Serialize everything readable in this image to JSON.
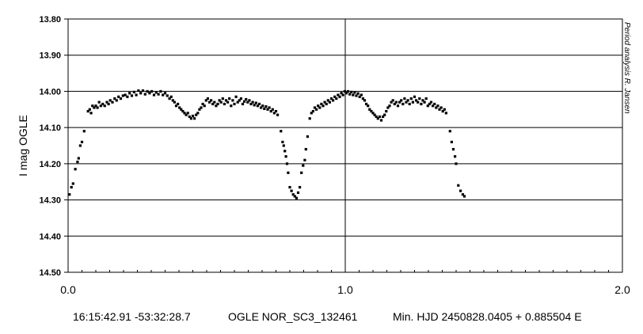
{
  "chart_data": {
    "type": "scatter",
    "ylabel": "I mag OGLE",
    "side_label": "Period analysis R. Jansen",
    "footer": {
      "coords": "16:15:42.91 -53:32:28.7",
      "object": "OGLE NOR_SC3_132461",
      "ephemeris": "Min. HJD 2450828.0405 + 0.885504 E"
    },
    "xlim": [
      0.0,
      2.0
    ],
    "ylim": [
      13.8,
      14.5
    ],
    "y_inverted": true,
    "x_major_ticks": [
      "0.0",
      "1.0",
      "2.0"
    ],
    "y_ticks": [
      "13.80",
      "13.90",
      "14.00",
      "14.10",
      "14.20",
      "14.30",
      "14.40",
      "14.50"
    ],
    "grid": "horizontal lines at each y tick; vertical line at 1.0",
    "marker_color": "#000000",
    "series": [
      {
        "points": [
          [
            0.005,
            14.285
          ],
          [
            0.012,
            14.265
          ],
          [
            0.018,
            14.255
          ],
          [
            0.026,
            14.215
          ],
          [
            0.034,
            14.195
          ],
          [
            0.038,
            14.185
          ],
          [
            0.044,
            14.15
          ],
          [
            0.05,
            14.14
          ],
          [
            0.058,
            14.11
          ],
          [
            0.072,
            14.055
          ],
          [
            0.078,
            14.05
          ],
          [
            0.083,
            14.06
          ],
          [
            0.088,
            14.04
          ],
          [
            0.094,
            14.045
          ],
          [
            0.1,
            14.04
          ],
          [
            0.106,
            14.045
          ],
          [
            0.112,
            14.03
          ],
          [
            0.118,
            14.04
          ],
          [
            0.125,
            14.035
          ],
          [
            0.132,
            14.04
          ],
          [
            0.14,
            14.03
          ],
          [
            0.146,
            14.035
          ],
          [
            0.152,
            14.025
          ],
          [
            0.16,
            14.03
          ],
          [
            0.168,
            14.02
          ],
          [
            0.175,
            14.025
          ],
          [
            0.182,
            14.015
          ],
          [
            0.19,
            14.02
          ],
          [
            0.198,
            14.012
          ],
          [
            0.206,
            14.01
          ],
          [
            0.214,
            14.015
          ],
          [
            0.222,
            14.005
          ],
          [
            0.23,
            14.012
          ],
          [
            0.238,
            14.002
          ],
          [
            0.246,
            14.01
          ],
          [
            0.254,
            13.998
          ],
          [
            0.262,
            14.005
          ],
          [
            0.27,
            13.998
          ],
          [
            0.278,
            14.008
          ],
          [
            0.286,
            14.0
          ],
          [
            0.294,
            14.005
          ],
          [
            0.302,
            14.0
          ],
          [
            0.31,
            14.01
          ],
          [
            0.318,
            14.003
          ],
          [
            0.326,
            14.008
          ],
          [
            0.334,
            14.0
          ],
          [
            0.342,
            14.01
          ],
          [
            0.35,
            14.005
          ],
          [
            0.358,
            14.012
          ],
          [
            0.366,
            14.02
          ],
          [
            0.372,
            14.015
          ],
          [
            0.378,
            14.025
          ],
          [
            0.384,
            14.03
          ],
          [
            0.39,
            14.04
          ],
          [
            0.396,
            14.035
          ],
          [
            0.402,
            14.045
          ],
          [
            0.408,
            14.05
          ],
          [
            0.414,
            14.055
          ],
          [
            0.42,
            14.06
          ],
          [
            0.426,
            14.065
          ],
          [
            0.432,
            14.06
          ],
          [
            0.438,
            14.07
          ],
          [
            0.444,
            14.075
          ],
          [
            0.45,
            14.068
          ],
          [
            0.456,
            14.075
          ],
          [
            0.462,
            14.065
          ],
          [
            0.468,
            14.06
          ],
          [
            0.474,
            14.05
          ],
          [
            0.48,
            14.045
          ],
          [
            0.486,
            14.035
          ],
          [
            0.492,
            14.04
          ],
          [
            0.498,
            14.025
          ],
          [
            0.504,
            14.02
          ],
          [
            0.51,
            14.03
          ],
          [
            0.516,
            14.025
          ],
          [
            0.522,
            14.035
          ],
          [
            0.528,
            14.03
          ],
          [
            0.534,
            14.04
          ],
          [
            0.54,
            14.035
          ],
          [
            0.546,
            14.025
          ],
          [
            0.552,
            14.03
          ],
          [
            0.558,
            14.02
          ],
          [
            0.564,
            14.035
          ],
          [
            0.57,
            14.025
          ],
          [
            0.576,
            14.03
          ],
          [
            0.582,
            14.02
          ],
          [
            0.588,
            14.04
          ],
          [
            0.594,
            14.025
          ],
          [
            0.6,
            14.035
          ],
          [
            0.606,
            14.015
          ],
          [
            0.612,
            14.03
          ],
          [
            0.618,
            14.025
          ],
          [
            0.624,
            14.02
          ],
          [
            0.63,
            14.035
          ],
          [
            0.636,
            14.028
          ],
          [
            0.642,
            14.022
          ],
          [
            0.648,
            14.03
          ],
          [
            0.654,
            14.025
          ],
          [
            0.66,
            14.035
          ],
          [
            0.666,
            14.03
          ],
          [
            0.672,
            14.038
          ],
          [
            0.678,
            14.032
          ],
          [
            0.684,
            14.04
          ],
          [
            0.69,
            14.035
          ],
          [
            0.696,
            14.045
          ],
          [
            0.702,
            14.04
          ],
          [
            0.708,
            14.048
          ],
          [
            0.714,
            14.042
          ],
          [
            0.72,
            14.05
          ],
          [
            0.726,
            14.045
          ],
          [
            0.732,
            14.055
          ],
          [
            0.738,
            14.05
          ],
          [
            0.744,
            14.06
          ],
          [
            0.75,
            14.055
          ],
          [
            0.756,
            14.065
          ],
          [
            0.768,
            14.11
          ],
          [
            0.774,
            14.14
          ],
          [
            0.778,
            14.15
          ],
          [
            0.782,
            14.165
          ],
          [
            0.786,
            14.18
          ],
          [
            0.79,
            14.2
          ],
          [
            0.794,
            14.225
          ],
          [
            0.8,
            14.265
          ],
          [
            0.806,
            14.275
          ],
          [
            0.812,
            14.285
          ],
          [
            0.818,
            14.29
          ],
          [
            0.824,
            14.295
          ],
          [
            0.83,
            14.28
          ],
          [
            0.836,
            14.265
          ],
          [
            0.842,
            14.225
          ],
          [
            0.848,
            14.205
          ],
          [
            0.854,
            14.19
          ],
          [
            0.858,
            14.16
          ],
          [
            0.864,
            14.125
          ],
          [
            0.872,
            14.075
          ],
          [
            0.878,
            14.06
          ],
          [
            0.884,
            14.055
          ],
          [
            0.89,
            14.045
          ],
          [
            0.896,
            14.05
          ],
          [
            0.902,
            14.04
          ],
          [
            0.908,
            14.045
          ],
          [
            0.914,
            14.035
          ],
          [
            0.92,
            14.04
          ],
          [
            0.926,
            14.03
          ],
          [
            0.932,
            14.035
          ],
          [
            0.938,
            14.025
          ],
          [
            0.944,
            14.03
          ],
          [
            0.95,
            14.02
          ],
          [
            0.956,
            14.025
          ],
          [
            0.962,
            14.015
          ],
          [
            0.968,
            14.02
          ],
          [
            0.974,
            14.01
          ],
          [
            0.98,
            14.015
          ],
          [
            0.986,
            14.005
          ],
          [
            0.992,
            14.01
          ],
          [
            0.998,
            14.0
          ],
          [
            1.004,
            14.005
          ],
          [
            1.01,
            14.0
          ],
          [
            1.016,
            14.008
          ],
          [
            1.022,
            14.002
          ],
          [
            1.028,
            14.01
          ],
          [
            1.034,
            14.003
          ],
          [
            1.04,
            14.012
          ],
          [
            1.046,
            14.006
          ],
          [
            1.052,
            14.015
          ],
          [
            1.058,
            14.01
          ],
          [
            1.064,
            14.02
          ],
          [
            1.07,
            14.025
          ],
          [
            1.076,
            14.035
          ],
          [
            1.082,
            14.04
          ],
          [
            1.088,
            14.05
          ],
          [
            1.094,
            14.055
          ],
          [
            1.1,
            14.06
          ],
          [
            1.106,
            14.065
          ],
          [
            1.112,
            14.07
          ],
          [
            1.118,
            14.075
          ],
          [
            1.124,
            14.07
          ],
          [
            1.13,
            14.08
          ],
          [
            1.136,
            14.07
          ],
          [
            1.142,
            14.065
          ],
          [
            1.148,
            14.055
          ],
          [
            1.154,
            14.045
          ],
          [
            1.16,
            14.04
          ],
          [
            1.166,
            14.03
          ],
          [
            1.172,
            14.025
          ],
          [
            1.178,
            14.035
          ],
          [
            1.184,
            14.03
          ],
          [
            1.19,
            14.04
          ],
          [
            1.196,
            14.03
          ],
          [
            1.202,
            14.025
          ],
          [
            1.208,
            14.035
          ],
          [
            1.214,
            14.02
          ],
          [
            1.22,
            14.03
          ],
          [
            1.226,
            14.025
          ],
          [
            1.232,
            14.035
          ],
          [
            1.238,
            14.02
          ],
          [
            1.244,
            14.03
          ],
          [
            1.25,
            14.015
          ],
          [
            1.256,
            14.025
          ],
          [
            1.262,
            14.03
          ],
          [
            1.268,
            14.02
          ],
          [
            1.274,
            14.035
          ],
          [
            1.28,
            14.025
          ],
          [
            1.286,
            14.03
          ],
          [
            1.292,
            14.02
          ],
          [
            1.298,
            14.04
          ],
          [
            1.304,
            14.035
          ],
          [
            1.31,
            14.03
          ],
          [
            1.316,
            14.04
          ],
          [
            1.322,
            14.035
          ],
          [
            1.328,
            14.045
          ],
          [
            1.334,
            14.04
          ],
          [
            1.34,
            14.05
          ],
          [
            1.346,
            14.045
          ],
          [
            1.352,
            14.055
          ],
          [
            1.358,
            14.05
          ],
          [
            1.364,
            14.06
          ],
          [
            1.378,
            14.11
          ],
          [
            1.384,
            14.14
          ],
          [
            1.39,
            14.16
          ],
          [
            1.396,
            14.18
          ],
          [
            1.4,
            14.2
          ],
          [
            1.408,
            14.26
          ],
          [
            1.416,
            14.275
          ],
          [
            1.424,
            14.285
          ],
          [
            1.43,
            14.29
          ]
        ]
      }
    ]
  }
}
